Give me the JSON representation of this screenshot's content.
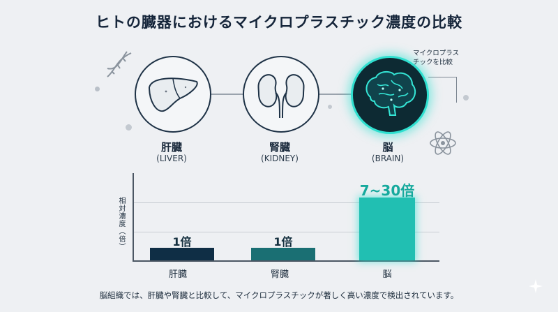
{
  "title": "ヒトの臓器におけるマイクロプラスチック濃度の比較",
  "note": [
    "マイクロプラス",
    "チックを比較"
  ],
  "organs": [
    {
      "name": "肝臓",
      "en": "(LIVER)",
      "icon": "liver-icon"
    },
    {
      "name": "腎臓",
      "en": "(KIDNEY)",
      "icon": "kidney-icon"
    },
    {
      "name": "脳",
      "en": "(BRAIN)",
      "icon": "brain-icon"
    }
  ],
  "chart_data": {
    "type": "bar",
    "ylabel": "相対濃度（倍）",
    "categories": [
      "肝臓",
      "腎臓",
      "脳"
    ],
    "values": [
      1,
      1,
      30
    ],
    "value_labels": [
      "1倍",
      "1倍",
      "7~30倍"
    ],
    "colors": [
      "#0f2e45",
      "#1a6f73",
      "#21bfb2"
    ],
    "grid": true
  },
  "caption": "脳組織では、肝臓や腎臓と比較して、マイクロプラスチックが著しく高い濃度で検出されています。",
  "colors": {
    "accent": "#2fe0d0",
    "dark": "#15253a"
  }
}
